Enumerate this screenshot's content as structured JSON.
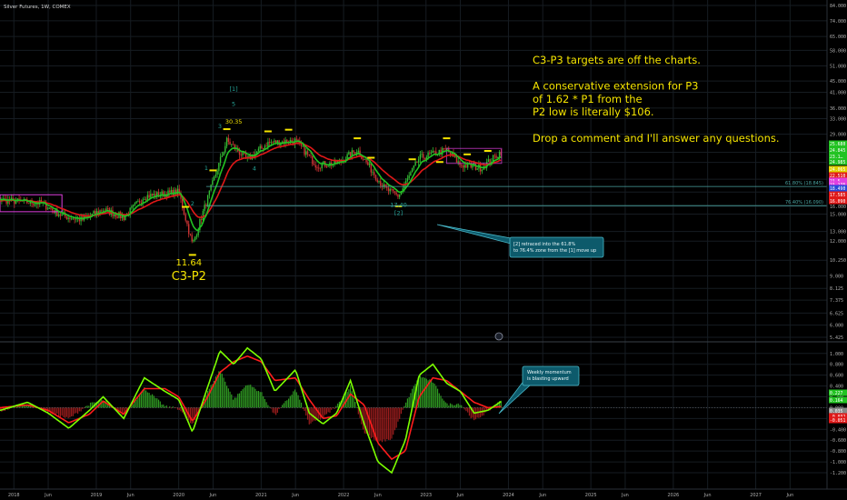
{
  "header": {
    "symbol_label": "Silver Futures, 1W, COMEX"
  },
  "colors": {
    "background": "#000000",
    "grid": "#161c22",
    "axis_text": "#b0b0b0",
    "annotation_yellow": "#f5e400",
    "wave_label_green": "#26a69a",
    "ema_green": "#22c322",
    "ema_red": "#e01818",
    "candle_green": "#33bb33",
    "candle_red": "#cc3333",
    "magenta": "#e040e0",
    "fib_line": "#4aa3a0",
    "callout_fill": "#0d5a6b",
    "callout_border": "#49b8c8",
    "hist_green": "#2f9a22",
    "hist_red": "#9b1d1d",
    "osc_green": "#7cff00",
    "osc_red": "#ff1c1c"
  },
  "chart_data": [
    {
      "type": "candlestick",
      "title": "Silver Futures, 1W, COMEX",
      "yscale": "log",
      "y_ticks": [
        "84.000",
        "74.000",
        "65.000",
        "58.000",
        "51.000",
        "45.000",
        "41.000",
        "36.000",
        "33.000",
        "29.000",
        "25.000",
        "23.000",
        "20.000",
        "18.000",
        "16.000",
        "15.000",
        "13.000",
        "12.000",
        "10.250",
        "9.000",
        "8.125",
        "7.375",
        "6.625",
        "6.000",
        "5.425"
      ],
      "x_ticks": [
        "2018",
        "Jun",
        "2019",
        "Jun",
        "2020",
        "Jun",
        "2021",
        "Jun",
        "2022",
        "Jun",
        "2023",
        "Jun",
        "2024",
        "Jun",
        "2025",
        "Jun",
        "2026",
        "Jun",
        "2027",
        "Jun"
      ],
      "price_path": [
        {
          "date": "2017-08",
          "close": 16.8
        },
        {
          "date": "2017-11",
          "close": 16.9
        },
        {
          "date": "2018-02",
          "close": 16.6
        },
        {
          "date": "2018-05",
          "close": 16.4
        },
        {
          "date": "2018-08",
          "close": 14.8
        },
        {
          "date": "2018-11",
          "close": 14.3
        },
        {
          "date": "2019-02",
          "close": 15.6
        },
        {
          "date": "2019-05",
          "close": 14.6
        },
        {
          "date": "2019-08",
          "close": 17.4
        },
        {
          "date": "2019-10",
          "close": 17.6
        },
        {
          "date": "2020-01",
          "close": 18.0
        },
        {
          "date": "2020-03",
          "close": 11.64
        },
        {
          "date": "2020-05",
          "close": 16.5
        },
        {
          "date": "2020-08",
          "close": 27.5
        },
        {
          "date": "2020-11",
          "close": 23.5
        },
        {
          "date": "2021-02",
          "close": 27.0
        },
        {
          "date": "2021-06",
          "close": 27.5
        },
        {
          "date": "2021-09",
          "close": 22.5
        },
        {
          "date": "2021-12",
          "close": 22.8
        },
        {
          "date": "2022-03",
          "close": 25.5
        },
        {
          "date": "2022-07",
          "close": 18.5
        },
        {
          "date": "2022-09",
          "close": 17.4
        },
        {
          "date": "2022-12",
          "close": 23.8
        },
        {
          "date": "2023-04",
          "close": 25.5
        },
        {
          "date": "2023-06",
          "close": 22.5
        },
        {
          "date": "2023-09",
          "close": 22.0
        },
        {
          "date": "2023-11",
          "close": 24.0
        },
        {
          "date": "2023-12",
          "close": 25.3
        }
      ],
      "fib_levels": [
        {
          "label": "61.80% (18.845)",
          "value": 18.845
        },
        {
          "label": "76.40% (16.090)",
          "value": 16.09
        }
      ],
      "price_badges": [
        {
          "text": "25.680",
          "color": "#22c322"
        },
        {
          "text": "24.845",
          "color": "#22c322"
        },
        {
          "text": "23.1…",
          "color": "#22c322"
        },
        {
          "text": "24.985",
          "color": "#22c322"
        },
        {
          "text": "24.065",
          "color": "#e0d000"
        },
        {
          "text": "22.510",
          "color": "#e01818"
        },
        {
          "text": "21.5…",
          "color": "#e040e0"
        },
        {
          "text": "21.175",
          "color": "#e040e0"
        },
        {
          "text": "18.490",
          "color": "#2846d8"
        },
        {
          "text": "17.585",
          "color": "#e01818"
        },
        {
          "text": "16.090",
          "color": "#e01818"
        }
      ],
      "wave_labels": [
        {
          "text": "[1]",
          "date": "2020-09",
          "price": 41.5,
          "color": "green"
        },
        {
          "text": "5",
          "date": "2020-09",
          "price": 36.7,
          "color": "green"
        },
        {
          "text": "30.35",
          "date": "2020-09",
          "price": 31.6,
          "color": "yellow"
        },
        {
          "text": "3",
          "date": "2020-07",
          "price": 30.5,
          "color": "green"
        },
        {
          "text": "1",
          "date": "2020-05",
          "price": 21.6,
          "color": "green"
        },
        {
          "text": "4",
          "date": "2020-12",
          "price": 21.5,
          "color": "green"
        },
        {
          "text": "2",
          "date": "2020-03",
          "price": 16.1,
          "color": "green"
        },
        {
          "text": "17.40",
          "date": "2022-09",
          "price": 15.9,
          "color": "green"
        },
        {
          "text": "[2]",
          "date": "2022-09",
          "price": 14.9,
          "color": "green"
        }
      ],
      "low_annotation": {
        "value": "11.64",
        "label": "C3-P2",
        "date": "2020-03"
      },
      "commentary": [
        "C3-P3 targets are off the charts.",
        "",
        "A conservative extension for P3",
        "of 1.62 * P1 from the",
        "P2 low is literally $106.",
        "",
        "Drop a comment and I'll answer any questions."
      ],
      "callout_price": {
        "lines": [
          "[2] retraced into the 61.8%",
          "to 76.4% zone from the [1] move up"
        ]
      }
    },
    {
      "type": "oscillator",
      "y_ticks": [
        "1.000",
        "0.800",
        "0.600",
        "0.400",
        "0.200",
        "0.000",
        "-0.200",
        "-0.400",
        "-0.600",
        "-0.800",
        "-1.000",
        "-1.200"
      ],
      "ylim": [
        -1.25,
        1.08
      ],
      "series": [
        {
          "name": "",
          "color": "green",
          "points": [
            [
              "2017-08",
              0.05
            ],
            [
              "2017-11",
              -0.05
            ],
            [
              "2018-03",
              0.1
            ],
            [
              "2018-06",
              -0.1
            ],
            [
              "2018-09",
              -0.38
            ],
            [
              "2018-12",
              -0.05
            ],
            [
              "2019-02",
              0.2
            ],
            [
              "2019-05",
              -0.2
            ],
            [
              "2019-08",
              0.55
            ],
            [
              "2019-11",
              0.3
            ],
            [
              "2020-01",
              0.15
            ],
            [
              "2020-03",
              -0.45
            ],
            [
              "2020-05",
              0.3
            ],
            [
              "2020-07",
              1.05
            ],
            [
              "2020-09",
              0.8
            ],
            [
              "2020-11",
              1.1
            ],
            [
              "2021-01",
              0.9
            ],
            [
              "2021-03",
              0.3
            ],
            [
              "2021-06",
              0.7
            ],
            [
              "2021-08",
              -0.1
            ],
            [
              "2021-10",
              -0.3
            ],
            [
              "2021-12",
              -0.1
            ],
            [
              "2022-02",
              0.5
            ],
            [
              "2022-04",
              -0.3
            ],
            [
              "2022-06",
              -1.0
            ],
            [
              "2022-08",
              -1.2
            ],
            [
              "2022-10",
              -0.6
            ],
            [
              "2022-12",
              0.6
            ],
            [
              "2023-02",
              0.8
            ],
            [
              "2023-04",
              0.45
            ],
            [
              "2023-06",
              0.3
            ],
            [
              "2023-08",
              -0.1
            ],
            [
              "2023-10",
              -0.05
            ],
            [
              "2023-12",
              0.12
            ]
          ]
        },
        {
          "name": "",
          "color": "red",
          "points": [
            [
              "2017-08",
              0.08
            ],
            [
              "2017-11",
              0.0
            ],
            [
              "2018-03",
              0.05
            ],
            [
              "2018-06",
              -0.05
            ],
            [
              "2018-09",
              -0.28
            ],
            [
              "2018-12",
              -0.12
            ],
            [
              "2019-02",
              0.12
            ],
            [
              "2019-05",
              -0.12
            ],
            [
              "2019-08",
              0.35
            ],
            [
              "2019-11",
              0.35
            ],
            [
              "2020-01",
              0.2
            ],
            [
              "2020-03",
              -0.25
            ],
            [
              "2020-05",
              0.15
            ],
            [
              "2020-07",
              0.65
            ],
            [
              "2020-09",
              0.85
            ],
            [
              "2020-11",
              0.95
            ],
            [
              "2021-01",
              0.85
            ],
            [
              "2021-03",
              0.5
            ],
            [
              "2021-06",
              0.55
            ],
            [
              "2021-08",
              0.15
            ],
            [
              "2021-10",
              -0.2
            ],
            [
              "2021-12",
              -0.15
            ],
            [
              "2022-02",
              0.25
            ],
            [
              "2022-04",
              0.05
            ],
            [
              "2022-06",
              -0.65
            ],
            [
              "2022-08",
              -0.95
            ],
            [
              "2022-10",
              -0.8
            ],
            [
              "2022-12",
              0.2
            ],
            [
              "2023-02",
              0.55
            ],
            [
              "2023-04",
              0.5
            ],
            [
              "2023-06",
              0.3
            ],
            [
              "2023-08",
              0.1
            ],
            [
              "2023-10",
              0.0
            ],
            [
              "2023-12",
              0.02
            ]
          ]
        }
      ],
      "value_badges": [
        {
          "text": "0.227",
          "color": "#22c322"
        },
        {
          "text": "0.164",
          "color": "#22c322"
        },
        {
          "text": "0.035",
          "color": "#888888"
        },
        {
          "text": "-0.032",
          "color": "#e01818"
        },
        {
          "text": "-0.051",
          "color": "#e01818"
        }
      ],
      "callout_momentum": {
        "lines": [
          "Weekly momentum",
          "is blasting upward"
        ]
      }
    }
  ]
}
